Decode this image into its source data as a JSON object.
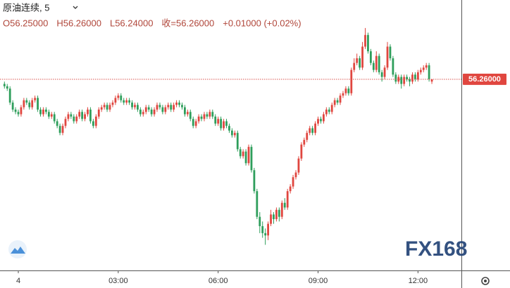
{
  "chart_data": {
    "type": "candlestick",
    "title": "原油连续, 5",
    "header": [
      "O56.25000",
      "H56.26000",
      "L56.24000",
      "收=56.26000",
      "+0.01000 (+0.02%)"
    ],
    "last_price": {
      "value": 56.26,
      "label": "56.26000"
    },
    "watermark": "FX168",
    "up_color": "#e0463f",
    "down_color": "#2e9e5b",
    "grid": false,
    "ylim": [
      55.44,
      56.6
    ],
    "xticks": [
      {
        "value": "00:00",
        "label": "4"
      },
      "03:00",
      "06:00",
      "09:00",
      "12:00"
    ],
    "x": [
      "23:35",
      "23:40",
      "23:45",
      "23:50",
      "23:55",
      "00:00",
      "00:05",
      "00:10",
      "00:15",
      "00:20",
      "00:25",
      "00:30",
      "00:35",
      "00:40",
      "00:45",
      "00:50",
      "00:55",
      "01:00",
      "01:05",
      "01:10",
      "01:15",
      "01:20",
      "01:25",
      "01:30",
      "01:35",
      "01:40",
      "01:45",
      "01:50",
      "01:55",
      "02:00",
      "02:05",
      "02:10",
      "02:15",
      "02:20",
      "02:25",
      "02:30",
      "02:35",
      "02:40",
      "02:45",
      "02:50",
      "02:55",
      "03:00",
      "03:05",
      "03:10",
      "03:15",
      "03:20",
      "03:25",
      "03:30",
      "03:35",
      "03:40",
      "03:45",
      "03:50",
      "03:55",
      "04:00",
      "04:05",
      "04:10",
      "04:15",
      "04:20",
      "04:25",
      "04:30",
      "04:35",
      "04:40",
      "04:45",
      "04:50",
      "04:55",
      "05:00",
      "05:05",
      "05:10",
      "05:15",
      "05:20",
      "05:25",
      "05:30",
      "05:35",
      "05:40",
      "05:45",
      "05:50",
      "05:55",
      "06:00",
      "06:05",
      "06:10",
      "06:15",
      "06:20",
      "06:25",
      "06:30",
      "06:35",
      "06:40",
      "06:45",
      "06:50",
      "06:55",
      "07:00",
      "07:05",
      "07:10",
      "07:15",
      "07:20",
      "07:25",
      "07:30",
      "07:35",
      "07:40",
      "07:45",
      "07:50",
      "07:55",
      "08:00",
      "08:05",
      "08:10",
      "08:15",
      "08:20",
      "08:25",
      "08:30",
      "08:35",
      "08:40",
      "08:45",
      "08:50",
      "08:55",
      "09:00",
      "09:05",
      "09:10",
      "09:15",
      "09:20",
      "09:25",
      "09:30",
      "09:35",
      "09:40",
      "09:45",
      "09:50",
      "09:55",
      "10:00",
      "10:05",
      "10:10",
      "10:15",
      "10:20",
      "10:25",
      "10:30",
      "10:35",
      "10:40",
      "10:45",
      "10:50",
      "10:55",
      "11:00",
      "11:05",
      "11:10",
      "11:15",
      "11:20",
      "11:25",
      "11:30",
      "11:35",
      "11:40",
      "11:45",
      "11:50",
      "11:55",
      "12:00",
      "12:05",
      "12:10",
      "12:15",
      "12:20",
      "12:25"
    ],
    "ohlc": [
      [
        56.24,
        56.25,
        56.22,
        56.23
      ],
      [
        56.23,
        56.24,
        56.21,
        56.22
      ],
      [
        56.22,
        56.23,
        56.15,
        56.16
      ],
      [
        56.16,
        56.17,
        56.12,
        56.13
      ],
      [
        56.13,
        56.14,
        56.11,
        56.12
      ],
      [
        56.12,
        56.13,
        56.1,
        56.11
      ],
      [
        56.11,
        56.15,
        56.1,
        56.14
      ],
      [
        56.14,
        56.18,
        56.13,
        56.17
      ],
      [
        56.17,
        56.18,
        56.15,
        56.16
      ],
      [
        56.16,
        56.17,
        56.13,
        56.14
      ],
      [
        56.14,
        56.18,
        56.13,
        56.17
      ],
      [
        56.17,
        56.19,
        56.16,
        56.18
      ],
      [
        56.18,
        56.19,
        56.12,
        56.13
      ],
      [
        56.13,
        56.14,
        56.1,
        56.11
      ],
      [
        56.11,
        56.14,
        56.1,
        56.13
      ],
      [
        56.13,
        56.14,
        56.11,
        56.12
      ],
      [
        56.12,
        56.13,
        56.09,
        56.1
      ],
      [
        56.1,
        56.12,
        56.09,
        56.11
      ],
      [
        56.11,
        56.12,
        56.07,
        56.08
      ],
      [
        56.08,
        56.09,
        56.05,
        56.06
      ],
      [
        56.06,
        56.07,
        56.02,
        56.03
      ],
      [
        56.03,
        56.07,
        56.02,
        56.06
      ],
      [
        56.06,
        56.1,
        56.05,
        56.09
      ],
      [
        56.09,
        56.12,
        56.08,
        56.11
      ],
      [
        56.11,
        56.12,
        56.09,
        56.1
      ],
      [
        56.1,
        56.11,
        56.07,
        56.08
      ],
      [
        56.08,
        56.11,
        56.07,
        56.1
      ],
      [
        56.1,
        56.13,
        56.09,
        56.12
      ],
      [
        56.12,
        56.13,
        56.08,
        56.09
      ],
      [
        56.09,
        56.12,
        56.08,
        56.11
      ],
      [
        56.11,
        56.14,
        56.1,
        56.13
      ],
      [
        56.13,
        56.14,
        56.07,
        56.08
      ],
      [
        56.08,
        56.09,
        56.05,
        56.06
      ],
      [
        56.06,
        56.11,
        56.05,
        56.1
      ],
      [
        56.1,
        56.14,
        56.09,
        56.13
      ],
      [
        56.13,
        56.15,
        56.12,
        56.14
      ],
      [
        56.14,
        56.16,
        56.13,
        56.15
      ],
      [
        56.15,
        56.16,
        56.12,
        56.13
      ],
      [
        56.13,
        56.16,
        56.12,
        56.15
      ],
      [
        56.15,
        56.17,
        56.14,
        56.16
      ],
      [
        56.16,
        56.19,
        56.15,
        56.18
      ],
      [
        56.18,
        56.2,
        56.17,
        56.19
      ],
      [
        56.19,
        56.2,
        56.16,
        56.17
      ],
      [
        56.17,
        56.18,
        56.15,
        56.16
      ],
      [
        56.16,
        56.18,
        56.15,
        56.17
      ],
      [
        56.17,
        56.18,
        56.15,
        56.16
      ],
      [
        56.16,
        56.17,
        56.13,
        56.14
      ],
      [
        56.14,
        56.16,
        56.13,
        56.15
      ],
      [
        56.15,
        56.16,
        56.12,
        56.13
      ],
      [
        56.13,
        56.14,
        56.1,
        56.11
      ],
      [
        56.11,
        56.13,
        56.1,
        56.12
      ],
      [
        56.12,
        56.15,
        56.11,
        56.14
      ],
      [
        56.14,
        56.15,
        56.12,
        56.13
      ],
      [
        56.13,
        56.14,
        56.1,
        56.11
      ],
      [
        56.11,
        56.14,
        56.1,
        56.13
      ],
      [
        56.13,
        56.16,
        56.12,
        56.15
      ],
      [
        56.15,
        56.16,
        56.13,
        56.14
      ],
      [
        56.14,
        56.15,
        56.11,
        56.12
      ],
      [
        56.12,
        56.15,
        56.11,
        56.14
      ],
      [
        56.14,
        56.16,
        56.13,
        56.15
      ],
      [
        56.15,
        56.16,
        56.12,
        56.13
      ],
      [
        56.13,
        56.16,
        56.12,
        56.15
      ],
      [
        56.15,
        56.17,
        56.14,
        56.16
      ],
      [
        56.16,
        56.17,
        56.14,
        56.15
      ],
      [
        56.15,
        56.16,
        56.13,
        56.14
      ],
      [
        56.14,
        56.15,
        56.1,
        56.11
      ],
      [
        56.11,
        56.13,
        56.1,
        56.12
      ],
      [
        56.12,
        56.13,
        56.08,
        56.09
      ],
      [
        56.09,
        56.1,
        56.05,
        56.06
      ],
      [
        56.06,
        56.09,
        56.05,
        56.08
      ],
      [
        56.08,
        56.11,
        56.07,
        56.1
      ],
      [
        56.1,
        56.11,
        56.08,
        56.09
      ],
      [
        56.09,
        56.12,
        56.08,
        56.11
      ],
      [
        56.11,
        56.12,
        56.09,
        56.1
      ],
      [
        56.1,
        56.13,
        56.09,
        56.12
      ],
      [
        56.12,
        56.13,
        56.09,
        56.1
      ],
      [
        56.1,
        56.11,
        56.06,
        56.07
      ],
      [
        56.07,
        56.1,
        56.06,
        56.09
      ],
      [
        56.09,
        56.1,
        56.04,
        56.05
      ],
      [
        56.05,
        56.09,
        56.04,
        56.08
      ],
      [
        56.08,
        56.09,
        56.05,
        56.06
      ],
      [
        56.06,
        56.07,
        56.03,
        56.04
      ],
      [
        56.04,
        56.05,
        56.01,
        56.02
      ],
      [
        56.02,
        56.04,
        56.01,
        56.03
      ],
      [
        56.03,
        56.04,
        55.95,
        55.96
      ],
      [
        55.96,
        55.97,
        55.92,
        55.93
      ],
      [
        55.93,
        55.96,
        55.92,
        55.95
      ],
      [
        55.95,
        55.96,
        55.89,
        55.9
      ],
      [
        55.9,
        55.98,
        55.89,
        55.97
      ],
      [
        55.97,
        55.98,
        55.86,
        55.87
      ],
      [
        55.87,
        55.88,
        55.77,
        55.78
      ],
      [
        55.78,
        55.79,
        55.66,
        55.67
      ],
      [
        55.67,
        55.69,
        55.6,
        55.63
      ],
      [
        55.63,
        55.65,
        55.58,
        55.6
      ],
      [
        55.6,
        55.62,
        55.55,
        55.59
      ],
      [
        55.59,
        55.65,
        55.57,
        55.64
      ],
      [
        55.64,
        55.7,
        55.63,
        55.68
      ],
      [
        55.68,
        55.69,
        55.64,
        55.66
      ],
      [
        55.66,
        55.71,
        55.65,
        55.7
      ],
      [
        55.7,
        55.71,
        55.65,
        55.67
      ],
      [
        55.67,
        55.74,
        55.66,
        55.73
      ],
      [
        55.73,
        55.75,
        55.7,
        55.71
      ],
      [
        55.71,
        55.79,
        55.7,
        55.78
      ],
      [
        55.78,
        55.81,
        55.77,
        55.8
      ],
      [
        55.8,
        55.85,
        55.79,
        55.84
      ],
      [
        55.84,
        55.87,
        55.83,
        55.86
      ],
      [
        55.86,
        55.93,
        55.85,
        55.92
      ],
      [
        55.92,
        55.99,
        55.91,
        55.98
      ],
      [
        55.98,
        56.01,
        55.97,
        56.0
      ],
      [
        56.0,
        56.04,
        55.99,
        56.03
      ],
      [
        56.03,
        56.06,
        56.02,
        56.05
      ],
      [
        56.05,
        56.06,
        56.02,
        56.03
      ],
      [
        56.03,
        56.08,
        56.02,
        56.07
      ],
      [
        56.07,
        56.1,
        56.06,
        56.09
      ],
      [
        56.09,
        56.1,
        56.07,
        56.08
      ],
      [
        56.08,
        56.12,
        56.07,
        56.11
      ],
      [
        56.11,
        56.14,
        56.1,
        56.13
      ],
      [
        56.13,
        56.14,
        56.11,
        56.12
      ],
      [
        56.12,
        56.16,
        56.11,
        56.15
      ],
      [
        56.15,
        56.18,
        56.14,
        56.17
      ],
      [
        56.17,
        56.18,
        56.15,
        56.16
      ],
      [
        56.16,
        56.2,
        56.15,
        56.19
      ],
      [
        56.19,
        56.21,
        56.18,
        56.2
      ],
      [
        56.2,
        56.23,
        56.19,
        56.22
      ],
      [
        56.22,
        56.23,
        56.19,
        56.2
      ],
      [
        56.2,
        56.31,
        56.19,
        56.3
      ],
      [
        56.3,
        56.35,
        56.29,
        56.33
      ],
      [
        56.33,
        56.37,
        56.32,
        56.35
      ],
      [
        56.35,
        56.36,
        56.3,
        56.31
      ],
      [
        56.31,
        56.42,
        56.3,
        56.4
      ],
      [
        56.4,
        56.48,
        56.39,
        56.45
      ],
      [
        56.45,
        56.46,
        56.37,
        56.38
      ],
      [
        56.38,
        56.39,
        56.32,
        56.33
      ],
      [
        56.33,
        56.34,
        56.29,
        56.3
      ],
      [
        56.3,
        56.38,
        56.29,
        56.36
      ],
      [
        56.36,
        56.37,
        56.28,
        56.29
      ],
      [
        56.29,
        56.3,
        56.25,
        56.27
      ],
      [
        56.27,
        56.32,
        56.26,
        56.31
      ],
      [
        56.31,
        56.42,
        56.3,
        56.4
      ],
      [
        56.4,
        56.41,
        56.34,
        56.35
      ],
      [
        56.35,
        56.36,
        56.27,
        56.28
      ],
      [
        56.28,
        56.29,
        56.24,
        56.25
      ],
      [
        56.25,
        56.28,
        56.24,
        56.27
      ],
      [
        56.27,
        56.28,
        56.22,
        56.24
      ],
      [
        56.24,
        56.28,
        56.23,
        56.27
      ],
      [
        56.27,
        56.28,
        56.25,
        56.26
      ],
      [
        56.26,
        56.27,
        56.23,
        56.25
      ],
      [
        56.25,
        56.29,
        56.24,
        56.28
      ],
      [
        56.28,
        56.29,
        56.25,
        56.26
      ],
      [
        56.26,
        56.3,
        56.25,
        56.29
      ],
      [
        56.29,
        56.31,
        56.28,
        56.3
      ],
      [
        56.3,
        56.32,
        56.29,
        56.31
      ],
      [
        56.31,
        56.33,
        56.3,
        56.32
      ],
      [
        56.32,
        56.33,
        56.25,
        56.26
      ],
      [
        56.25,
        56.26,
        56.24,
        56.26
      ]
    ]
  }
}
